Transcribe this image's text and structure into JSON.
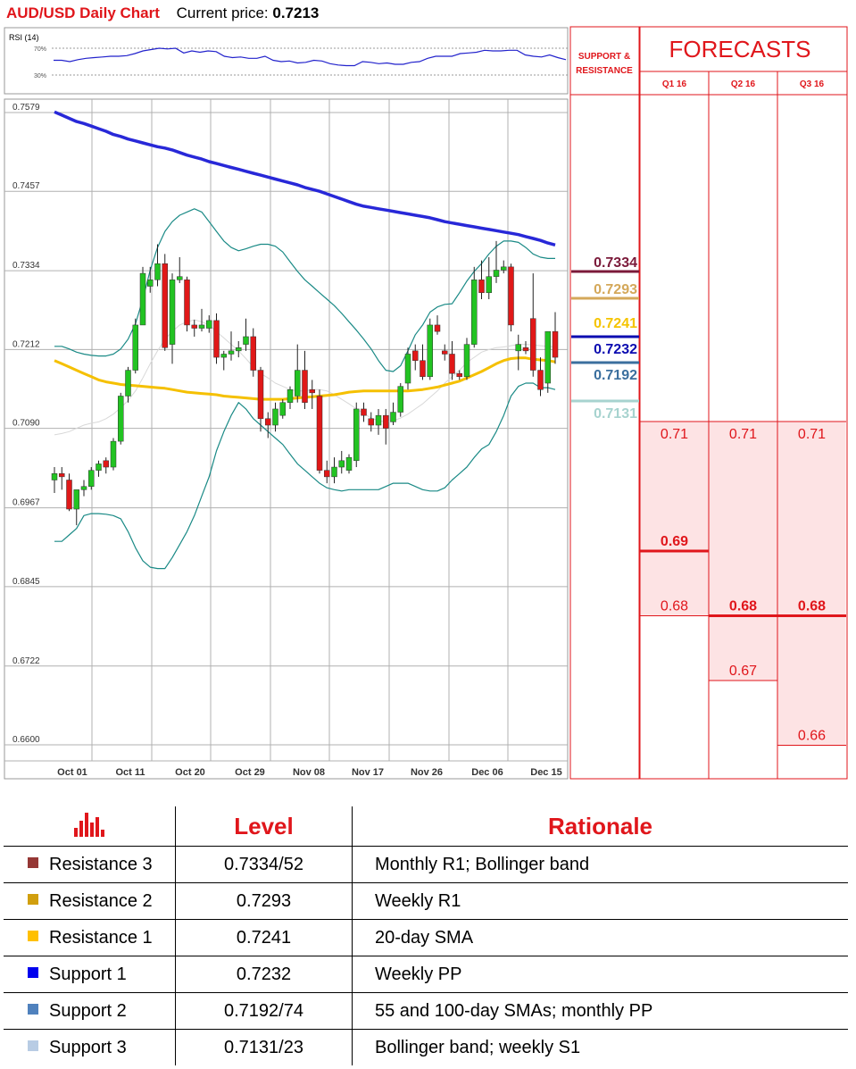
{
  "header": {
    "title": "AUD/USD Daily Chart",
    "price_label": "Current price:",
    "price_value": "0.7213"
  },
  "rsi": {
    "label": "RSI (14)",
    "levels": [
      "70%",
      "30%"
    ],
    "values": [
      52,
      52,
      50,
      53,
      55,
      56,
      57,
      58,
      58,
      59,
      62,
      66,
      68,
      70,
      69,
      70,
      63,
      66,
      64,
      66,
      65,
      58,
      56,
      57,
      55,
      55,
      58,
      52,
      50,
      51,
      48,
      49,
      52,
      51,
      47,
      45,
      44,
      44,
      50,
      49,
      47,
      48,
      46,
      46,
      49,
      50,
      55,
      58,
      58,
      58,
      62,
      63,
      64,
      67,
      66,
      66,
      67,
      67,
      60,
      58,
      57,
      60,
      56,
      53
    ]
  },
  "chart_data": {
    "type": "candlestick",
    "title": "AUD/USD Daily Chart",
    "y_ticks": [
      "0.7579",
      "0.7457",
      "0.7334",
      "0.7212",
      "0.7090",
      "0.6967",
      "0.6845",
      "0.6722",
      "0.6600"
    ],
    "ylim": [
      0.66,
      0.7579
    ],
    "x_ticks": [
      "Oct 01",
      "Oct 11",
      "Oct 20",
      "Oct 29",
      "Nov 08",
      "Nov 17",
      "Nov 26",
      "Dec 06",
      "Dec 15"
    ],
    "candles": [
      {
        "o": 0.701,
        "h": 0.703,
        "l": 0.699,
        "c": 0.702
      },
      {
        "o": 0.702,
        "h": 0.703,
        "l": 0.6995,
        "c": 0.7015
      },
      {
        "o": 0.701,
        "h": 0.702,
        "l": 0.6962,
        "c": 0.6965
      },
      {
        "o": 0.6965,
        "h": 0.699,
        "l": 0.694,
        "c": 0.6995
      },
      {
        "o": 0.6995,
        "h": 0.701,
        "l": 0.6985,
        "c": 0.7
      },
      {
        "o": 0.7,
        "h": 0.703,
        "l": 0.6995,
        "c": 0.7025
      },
      {
        "o": 0.7025,
        "h": 0.704,
        "l": 0.7015,
        "c": 0.7035
      },
      {
        "o": 0.704,
        "h": 0.7045,
        "l": 0.702,
        "c": 0.703
      },
      {
        "o": 0.703,
        "h": 0.7075,
        "l": 0.7025,
        "c": 0.707
      },
      {
        "o": 0.707,
        "h": 0.7145,
        "l": 0.7065,
        "c": 0.714
      },
      {
        "o": 0.714,
        "h": 0.7185,
        "l": 0.713,
        "c": 0.718
      },
      {
        "o": 0.718,
        "h": 0.726,
        "l": 0.7175,
        "c": 0.725
      },
      {
        "o": 0.725,
        "h": 0.734,
        "l": 0.725,
        "c": 0.733
      },
      {
        "o": 0.731,
        "h": 0.734,
        "l": 0.73,
        "c": 0.732
      },
      {
        "o": 0.732,
        "h": 0.7375,
        "l": 0.731,
        "c": 0.7345
      },
      {
        "o": 0.7345,
        "h": 0.736,
        "l": 0.721,
        "c": 0.7215
      },
      {
        "o": 0.722,
        "h": 0.733,
        "l": 0.719,
        "c": 0.732
      },
      {
        "o": 0.732,
        "h": 0.7355,
        "l": 0.7315,
        "c": 0.7325
      },
      {
        "o": 0.732,
        "h": 0.7325,
        "l": 0.724,
        "c": 0.725
      },
      {
        "o": 0.725,
        "h": 0.7258,
        "l": 0.7232,
        "c": 0.7245
      },
      {
        "o": 0.7245,
        "h": 0.7275,
        "l": 0.724,
        "c": 0.725
      },
      {
        "o": 0.7245,
        "h": 0.7265,
        "l": 0.7238,
        "c": 0.7257
      },
      {
        "o": 0.7257,
        "h": 0.7268,
        "l": 0.719,
        "c": 0.72
      },
      {
        "o": 0.72,
        "h": 0.721,
        "l": 0.718,
        "c": 0.7205
      },
      {
        "o": 0.7205,
        "h": 0.724,
        "l": 0.7195,
        "c": 0.721
      },
      {
        "o": 0.721,
        "h": 0.7225,
        "l": 0.72,
        "c": 0.7215
      },
      {
        "o": 0.722,
        "h": 0.726,
        "l": 0.721,
        "c": 0.7232
      },
      {
        "o": 0.7232,
        "h": 0.7245,
        "l": 0.717,
        "c": 0.718
      },
      {
        "o": 0.718,
        "h": 0.7185,
        "l": 0.7085,
        "c": 0.7105
      },
      {
        "o": 0.7105,
        "h": 0.7115,
        "l": 0.7075,
        "c": 0.7095
      },
      {
        "o": 0.7095,
        "h": 0.713,
        "l": 0.7085,
        "c": 0.712
      },
      {
        "o": 0.711,
        "h": 0.7135,
        "l": 0.7105,
        "c": 0.713
      },
      {
        "o": 0.713,
        "h": 0.7155,
        "l": 0.712,
        "c": 0.715
      },
      {
        "o": 0.714,
        "h": 0.722,
        "l": 0.713,
        "c": 0.718
      },
      {
        "o": 0.718,
        "h": 0.721,
        "l": 0.712,
        "c": 0.713
      },
      {
        "o": 0.715,
        "h": 0.7165,
        "l": 0.712,
        "c": 0.7145
      },
      {
        "o": 0.714,
        "h": 0.715,
        "l": 0.702,
        "c": 0.7025
      },
      {
        "o": 0.7025,
        "h": 0.704,
        "l": 0.7005,
        "c": 0.7015
      },
      {
        "o": 0.7015,
        "h": 0.7045,
        "l": 0.7005,
        "c": 0.703
      },
      {
        "o": 0.703,
        "h": 0.7055,
        "l": 0.702,
        "c": 0.704
      },
      {
        "o": 0.7025,
        "h": 0.705,
        "l": 0.702,
        "c": 0.7045
      },
      {
        "o": 0.704,
        "h": 0.713,
        "l": 0.703,
        "c": 0.712
      },
      {
        "o": 0.712,
        "h": 0.713,
        "l": 0.71,
        "c": 0.711
      },
      {
        "o": 0.7105,
        "h": 0.7115,
        "l": 0.7085,
        "c": 0.7095
      },
      {
        "o": 0.7095,
        "h": 0.712,
        "l": 0.708,
        "c": 0.711
      },
      {
        "o": 0.711,
        "h": 0.712,
        "l": 0.7065,
        "c": 0.709
      },
      {
        "o": 0.71,
        "h": 0.713,
        "l": 0.7095,
        "c": 0.7115
      },
      {
        "o": 0.7115,
        "h": 0.716,
        "l": 0.7108,
        "c": 0.7155
      },
      {
        "o": 0.716,
        "h": 0.7215,
        "l": 0.715,
        "c": 0.7205
      },
      {
        "o": 0.721,
        "h": 0.722,
        "l": 0.718,
        "c": 0.7195
      },
      {
        "o": 0.7195,
        "h": 0.722,
        "l": 0.7165,
        "c": 0.717
      },
      {
        "o": 0.717,
        "h": 0.726,
        "l": 0.7165,
        "c": 0.725
      },
      {
        "o": 0.725,
        "h": 0.7265,
        "l": 0.7235,
        "c": 0.724
      },
      {
        "o": 0.721,
        "h": 0.722,
        "l": 0.7195,
        "c": 0.7205
      },
      {
        "o": 0.7205,
        "h": 0.7225,
        "l": 0.7165,
        "c": 0.7175
      },
      {
        "o": 0.7175,
        "h": 0.718,
        "l": 0.7165,
        "c": 0.717
      },
      {
        "o": 0.717,
        "h": 0.723,
        "l": 0.7165,
        "c": 0.722
      },
      {
        "o": 0.722,
        "h": 0.734,
        "l": 0.7215,
        "c": 0.732
      },
      {
        "o": 0.732,
        "h": 0.735,
        "l": 0.729,
        "c": 0.73
      },
      {
        "o": 0.73,
        "h": 0.7355,
        "l": 0.729,
        "c": 0.7325
      },
      {
        "o": 0.7325,
        "h": 0.738,
        "l": 0.7315,
        "c": 0.7335
      },
      {
        "o": 0.7335,
        "h": 0.735,
        "l": 0.733,
        "c": 0.734
      },
      {
        "o": 0.734,
        "h": 0.7345,
        "l": 0.724,
        "c": 0.725
      },
      {
        "o": 0.721,
        "h": 0.7235,
        "l": 0.718,
        "c": 0.722
      },
      {
        "o": 0.7215,
        "h": 0.7225,
        "l": 0.7205,
        "c": 0.721
      },
      {
        "o": 0.726,
        "h": 0.733,
        "l": 0.717,
        "c": 0.718
      },
      {
        "o": 0.718,
        "h": 0.72,
        "l": 0.714,
        "c": 0.715
      },
      {
        "o": 0.716,
        "h": 0.724,
        "l": 0.7145,
        "c": 0.724
      },
      {
        "o": 0.724,
        "h": 0.727,
        "l": 0.719,
        "c": 0.72
      }
    ],
    "sma_200": [
      0.758,
      0.7575,
      0.757,
      0.7565,
      0.7562,
      0.7558,
      0.7554,
      0.755,
      0.7545,
      0.7542,
      0.7538,
      0.7535,
      0.7532,
      0.7529,
      0.7526,
      0.7524,
      0.7521,
      0.7517,
      0.7513,
      0.751,
      0.7507,
      0.7503,
      0.75,
      0.7497,
      0.7494,
      0.7491,
      0.7488,
      0.7485,
      0.7482,
      0.7479,
      0.7476,
      0.7473,
      0.747,
      0.7467,
      0.7463,
      0.746,
      0.7457,
      0.7453,
      0.7449,
      0.7445,
      0.7441,
      0.7437,
      0.7434,
      0.7432,
      0.743,
      0.7428,
      0.7426,
      0.7424,
      0.7422,
      0.742,
      0.7418,
      0.7416,
      0.7413,
      0.741,
      0.7408,
      0.7406,
      0.7404,
      0.7402,
      0.74,
      0.7398,
      0.7396,
      0.7394,
      0.7392,
      0.739,
      0.7387,
      0.7384,
      0.7381,
      0.7377,
      0.7374
    ],
    "sma_55": [
      0.7195,
      0.719,
      0.7185,
      0.718,
      0.7175,
      0.717,
      0.7165,
      0.7162,
      0.716,
      0.7158,
      0.7157,
      0.7156,
      0.7155,
      0.7154,
      0.7153,
      0.7152,
      0.715,
      0.7148,
      0.7146,
      0.7145,
      0.7144,
      0.7143,
      0.7142,
      0.714,
      0.7139,
      0.7138,
      0.7137,
      0.7136,
      0.7135,
      0.7135,
      0.7135,
      0.7135,
      0.7136,
      0.7137,
      0.7138,
      0.7139,
      0.714,
      0.7141,
      0.7142,
      0.7144,
      0.7146,
      0.7147,
      0.7148,
      0.7148,
      0.7148,
      0.7148,
      0.7148,
      0.7148,
      0.7148,
      0.7149,
      0.715,
      0.7152,
      0.7154,
      0.7157,
      0.716,
      0.7163,
      0.7168,
      0.7173,
      0.7178,
      0.7184,
      0.719,
      0.7195,
      0.7198,
      0.7199,
      0.7199,
      0.7197,
      0.7196,
      0.7195,
      0.7193
    ],
    "bb_upper": [
      0.7217,
      0.7217,
      0.7213,
      0.7208,
      0.7205,
      0.7203,
      0.7202,
      0.7202,
      0.7205,
      0.7213,
      0.7228,
      0.7252,
      0.729,
      0.7335,
      0.737,
      0.7395,
      0.741,
      0.742,
      0.7425,
      0.743,
      0.7425,
      0.741,
      0.7395,
      0.738,
      0.737,
      0.7365,
      0.7368,
      0.7372,
      0.7375,
      0.7375,
      0.7372,
      0.7363,
      0.7348,
      0.7333,
      0.732,
      0.731,
      0.73,
      0.729,
      0.728,
      0.7268,
      0.7255,
      0.7242,
      0.7228,
      0.7213,
      0.7195,
      0.718,
      0.7178,
      0.7187,
      0.721,
      0.7235,
      0.725,
      0.727,
      0.7278,
      0.7282,
      0.7283,
      0.73,
      0.7318,
      0.7333,
      0.7345,
      0.736,
      0.7372,
      0.738,
      0.738,
      0.7378,
      0.737,
      0.736,
      0.7355,
      0.7353,
      0.7353
    ],
    "bb_lower": [
      0.6915,
      0.6915,
      0.6925,
      0.6935,
      0.6955,
      0.6958,
      0.6958,
      0.6957,
      0.6955,
      0.695,
      0.693,
      0.6905,
      0.6885,
      0.6875,
      0.6873,
      0.6873,
      0.689,
      0.691,
      0.693,
      0.6955,
      0.6985,
      0.7015,
      0.7055,
      0.7085,
      0.711,
      0.713,
      0.712,
      0.7105,
      0.7095,
      0.7085,
      0.7075,
      0.7065,
      0.705,
      0.7035,
      0.7025,
      0.7015,
      0.7005,
      0.6998,
      0.6995,
      0.6993,
      0.6995,
      0.6995,
      0.6995,
      0.6995,
      0.6995,
      0.7,
      0.7005,
      0.7005,
      0.7005,
      0.7,
      0.6995,
      0.6993,
      0.6993,
      0.6998,
      0.701,
      0.702,
      0.703,
      0.7045,
      0.7058,
      0.7065,
      0.7085,
      0.711,
      0.714,
      0.7155,
      0.716,
      0.716,
      0.7153,
      0.7153,
      0.715
    ],
    "bb_mid": [
      0.708,
      0.7082,
      0.7085,
      0.709,
      0.7095,
      0.7098,
      0.71,
      0.7105,
      0.7112,
      0.7122,
      0.7133,
      0.7148,
      0.7168,
      0.719,
      0.721,
      0.7228,
      0.724,
      0.725,
      0.7255,
      0.7258,
      0.7255,
      0.725,
      0.724,
      0.723,
      0.722,
      0.721,
      0.7198,
      0.7185,
      0.7175,
      0.7168,
      0.716,
      0.7155,
      0.715,
      0.7148,
      0.7148,
      0.715,
      0.715,
      0.7148,
      0.7142,
      0.7135,
      0.7128,
      0.712,
      0.7113,
      0.7106,
      0.7102,
      0.71,
      0.7102,
      0.7106,
      0.7112,
      0.712,
      0.7128,
      0.7138,
      0.7148,
      0.716,
      0.717,
      0.718,
      0.7192,
      0.72,
      0.7208,
      0.7212,
      0.7215,
      0.7216,
      0.7218,
      0.722,
      0.722,
      0.7219,
      0.7218,
      0.7217,
      0.7216
    ],
    "levels": [
      {
        "value": "0.7334",
        "color": "#7b1a3a"
      },
      {
        "value": "0.7293",
        "color": "#d4a85a"
      },
      {
        "value": "0.7241",
        "color": "#f5c400"
      },
      {
        "value": "0.7232",
        "color": "#0b0bb0"
      },
      {
        "value": "0.7192",
        "color": "#3b6f9e"
      },
      {
        "value": "0.7131",
        "color": "#a7d3cf"
      }
    ]
  },
  "sr_header": "SUPPORT & RESISTANCE",
  "forecasts": {
    "title": "FORECASTS",
    "quarters": [
      {
        "label": "Q1 16",
        "high": "0.71",
        "median": "0.69",
        "low": "0.68",
        "high_v": 0.71,
        "median_v": 0.69,
        "low_v": 0.68
      },
      {
        "label": "Q2 16",
        "high": "0.71",
        "median": "0.68",
        "low": "0.67",
        "high_v": 0.71,
        "median_v": 0.68,
        "low_v": 0.67
      },
      {
        "label": "Q3 16",
        "high": "0.71",
        "median": "0.68",
        "low": "0.66",
        "high_v": 0.71,
        "median_v": 0.68,
        "low_v": 0.66
      }
    ]
  },
  "table": {
    "col_level": "Level",
    "col_rationale": "Rationale",
    "rows": [
      {
        "name": "Resistance 3",
        "level": "0.7334/52",
        "rationale": "Monthly R1; Bollinger band",
        "color": "#953735"
      },
      {
        "name": "Resistance 2",
        "level": "0.7293",
        "rationale": "Weekly R1",
        "color": "#d19f0e"
      },
      {
        "name": "Resistance 1",
        "level": "0.7241",
        "rationale": "20-day SMA",
        "color": "#ffc000"
      },
      {
        "name": "Support 1",
        "level": "0.7232",
        "rationale": "Weekly PP",
        "color": "#0000ee"
      },
      {
        "name": "Support 2",
        "level": "0.7192/74",
        "rationale": "55 and 100-day SMAs; monthly PP",
        "color": "#4f81bd"
      },
      {
        "name": "Support 3",
        "level": "0.7131/23",
        "rationale": "Bollinger band; weekly S1",
        "color": "#b8cce4"
      }
    ]
  }
}
